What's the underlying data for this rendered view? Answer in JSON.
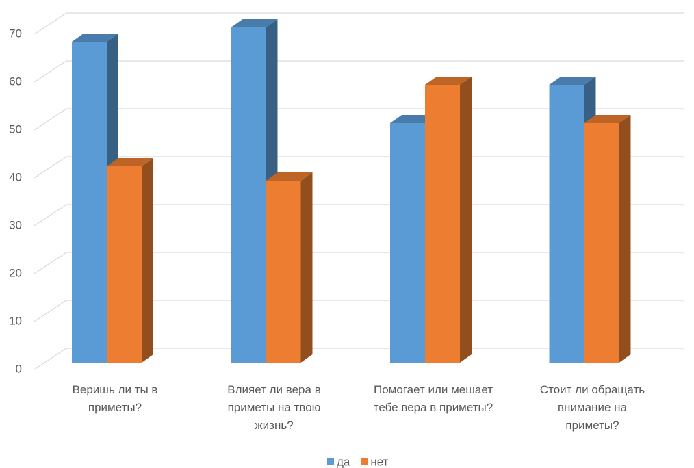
{
  "chart_data": {
    "type": "bar3d",
    "categories": [
      "Веришь ли ты в приметы?",
      "Влияет ли вера в приметы на твою жизнь?",
      "Помогает или мешает тебе вера в приметы?",
      "Стоит ли обращать внимание на приметы?"
    ],
    "series": [
      {
        "name": "да",
        "color": "#5b9bd5",
        "values": [
          67,
          70,
          50,
          58
        ]
      },
      {
        "name": "нет",
        "color": "#ed7d31",
        "values": [
          41,
          38,
          58,
          50
        ]
      }
    ],
    "ylim": [
      0,
      70
    ],
    "yticks": [
      0,
      10,
      20,
      30,
      40,
      50,
      60,
      70
    ],
    "grid": true,
    "legend": "bottom"
  }
}
